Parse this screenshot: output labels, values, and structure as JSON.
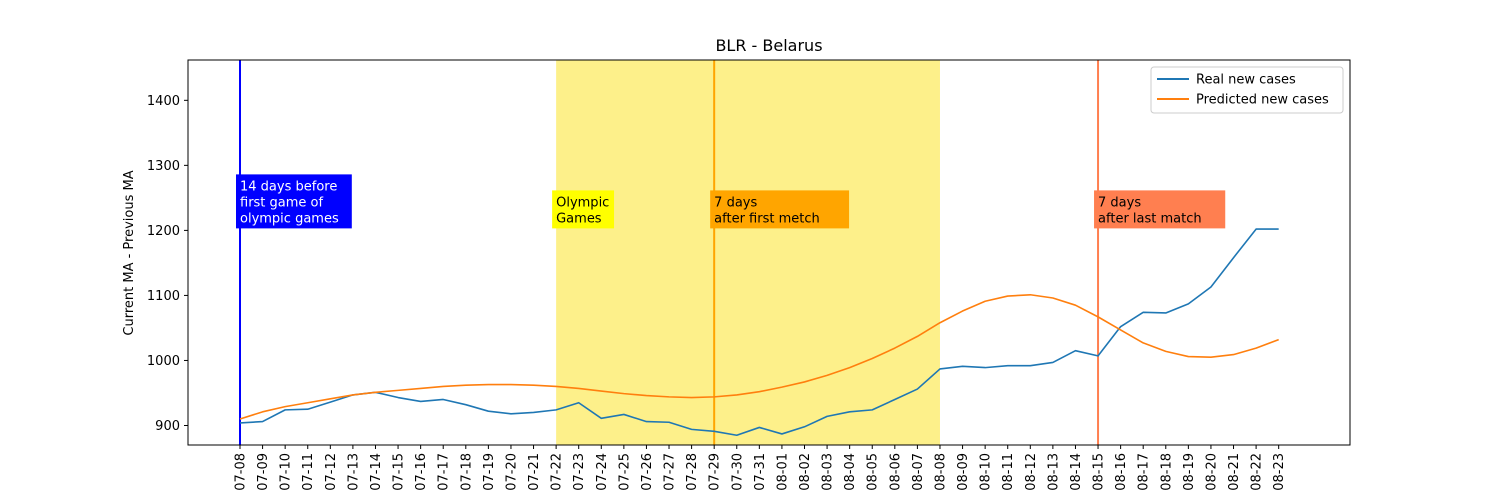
{
  "chart_data": {
    "type": "line",
    "title": "BLR - Belarus",
    "xlabel": "",
    "ylabel": "Current MA - Previous MA",
    "ylim": [
      870,
      1462
    ],
    "yticks": [
      900,
      1000,
      1100,
      1200,
      1300,
      1400
    ],
    "grid": false,
    "legend_position": "top-right",
    "x": [
      "07-08",
      "07-09",
      "07-10",
      "07-11",
      "07-12",
      "07-13",
      "07-14",
      "07-15",
      "07-16",
      "07-17",
      "07-18",
      "07-19",
      "07-20",
      "07-21",
      "07-22",
      "07-23",
      "07-24",
      "07-25",
      "07-26",
      "07-27",
      "07-28",
      "07-29",
      "07-30",
      "07-31",
      "08-01",
      "08-02",
      "08-03",
      "08-04",
      "08-05",
      "08-06",
      "08-07",
      "08-08",
      "08-09",
      "08-10",
      "08-11",
      "08-12",
      "08-13",
      "08-14",
      "08-15",
      "08-16",
      "08-17",
      "08-18",
      "08-19",
      "08-20",
      "08-21",
      "08-22",
      "08-23"
    ],
    "series": [
      {
        "name": "Real new cases",
        "color": "#1f77b4",
        "values": [
          904,
          906,
          924,
          925,
          936,
          947,
          951,
          943,
          937,
          940,
          932,
          922,
          918,
          920,
          924,
          935,
          911,
          917,
          906,
          905,
          894,
          891,
          885,
          897,
          887,
          898,
          914,
          921,
          924,
          940,
          956,
          987,
          991,
          989,
          992,
          992,
          997,
          1015,
          1007,
          1052,
          1074,
          1073,
          1087,
          1113,
          1158,
          1202,
          1202
        ]
      },
      {
        "name": "Predicted new cases",
        "color": "#ff7f0e",
        "values": [
          910,
          921,
          929,
          935,
          941,
          947,
          951,
          954,
          957,
          960,
          962,
          963,
          963,
          962,
          960,
          957,
          953,
          949,
          946,
          944,
          943,
          944,
          947,
          952,
          959,
          967,
          977,
          989,
          1003,
          1019,
          1037,
          1058,
          1076,
          1091,
          1099,
          1101,
          1096,
          1085,
          1067,
          1047,
          1027,
          1014,
          1006,
          1005,
          1009,
          1019,
          1032
        ]
      }
    ],
    "shaded_region": {
      "from": "07-22",
      "to": "08-08",
      "color": "#fdef84"
    },
    "vertical_lines": [
      {
        "at": "07-08",
        "color": "#0000ff"
      },
      {
        "at": "07-29",
        "color": "#ffa500"
      },
      {
        "at": "08-15",
        "color": "#ff7f50"
      }
    ],
    "annotations": [
      {
        "text": "14 days before\nfirst game of\nolympic games",
        "anchor": "07-08",
        "y": 1200,
        "bg": "#0000ff",
        "fg": "#ffffff"
      },
      {
        "text": "Olympic\nGames",
        "anchor": "07-22",
        "y": 1200,
        "bg": "#ffff00",
        "fg": "#000000"
      },
      {
        "text": "7 days\nafter first metch",
        "anchor": "07-29",
        "y": 1200,
        "bg": "#ffa500",
        "fg": "#000000"
      },
      {
        "text": "7 days\nafter last match",
        "anchor": "08-15",
        "y": 1200,
        "bg": "#ff7f50",
        "fg": "#000000"
      }
    ],
    "x_tick_labels": [
      "07-08",
      "07-09",
      "07-10",
      "07-11",
      "07-12",
      "07-13",
      "07-14",
      "07-15",
      "07-16",
      "07-17",
      "07-18",
      "07-19",
      "07-20",
      "07-21",
      "07-22",
      "07-23",
      "07-24",
      "07-25",
      "07-26",
      "07-27",
      "07-28",
      "07-29",
      "07-30",
      "07-31",
      "08-01",
      "08-02",
      "08-03",
      "08-04",
      "08-05",
      "08-06",
      "08-07",
      "08-08",
      "08-09",
      "08-10",
      "08-11",
      "08-12",
      "08-13",
      "08-14",
      "08-15",
      "08-16",
      "08-17",
      "08-18",
      "08-19",
      "08-20",
      "08-21",
      "08-22",
      "08-23"
    ]
  }
}
